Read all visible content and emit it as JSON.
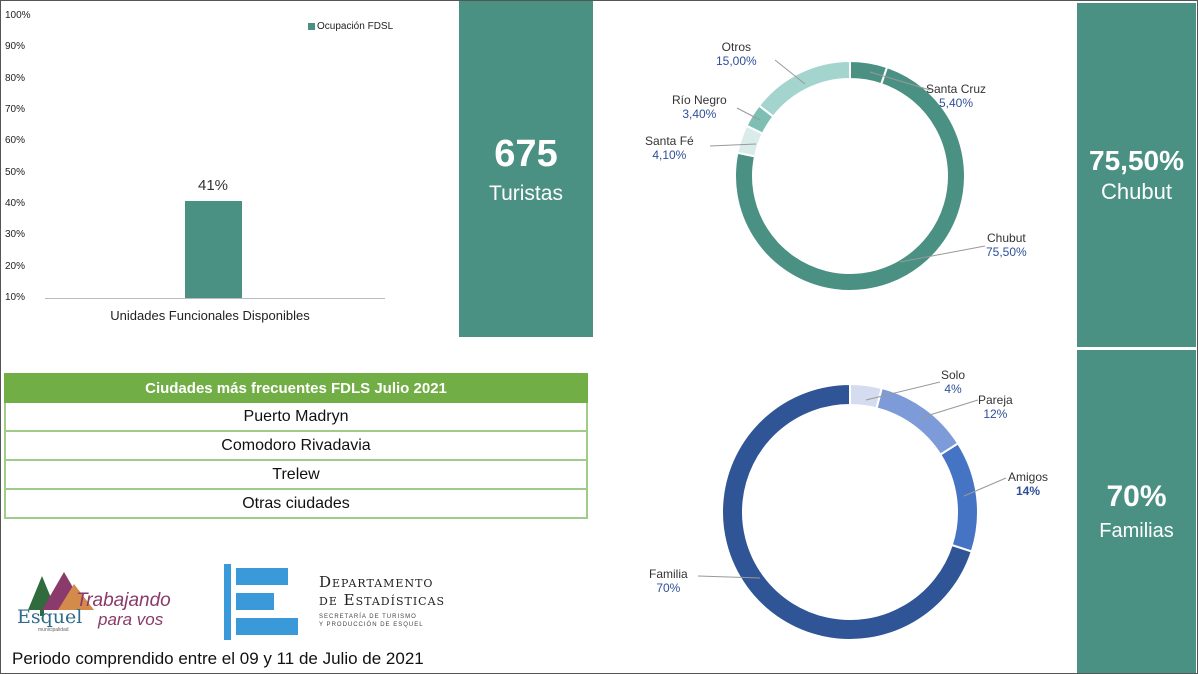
{
  "chart_data": [
    {
      "type": "bar",
      "categories": [
        "Unidades Funcionales Disponibles"
      ],
      "series": [
        {
          "name": "Ocupación FDSL",
          "values": [
            41
          ]
        }
      ],
      "data_labels": [
        "41%"
      ],
      "ylim": [
        10,
        100
      ],
      "yticks": [
        "100%",
        "90%",
        "80%",
        "70%",
        "60%",
        "50%",
        "40%",
        "30%",
        "20%",
        "10%"
      ],
      "legend": "top-right"
    },
    {
      "type": "pie",
      "donut": true,
      "slices": [
        {
          "name": "Santa Cruz",
          "value": 5.4,
          "label": "5,40%",
          "color": "#4a9184"
        },
        {
          "name": "Chubut",
          "value": 75.5,
          "label": "75,50%",
          "color": "#4a9184"
        },
        {
          "name": "Santa Fé",
          "value": 4.1,
          "label": "4,10%",
          "color": "#d9ecea"
        },
        {
          "name": "Río Negro",
          "value": 3.4,
          "label": "3,40%",
          "color": "#7ebfb4"
        },
        {
          "name": "Otros",
          "value": 15.0,
          "label": "15,00%",
          "color": "#a3d5ce"
        }
      ]
    },
    {
      "type": "pie",
      "donut": true,
      "slices": [
        {
          "name": "Solo",
          "value": 4,
          "label": "4%",
          "color": "#d5dcf0"
        },
        {
          "name": "Pareja",
          "value": 12,
          "label": "12%",
          "color": "#7d9bd8"
        },
        {
          "name": "Amigos",
          "value": 14,
          "label": "14%",
          "color": "#4674c4"
        },
        {
          "name": "Familia",
          "value": 70,
          "label": "70%",
          "color": "#2f5597"
        }
      ]
    }
  ],
  "stats": {
    "tourists": {
      "value": "675",
      "label": "Turistas"
    },
    "origin": {
      "value": "75,50%",
      "label": "Chubut"
    },
    "group": {
      "value": "70%",
      "label": "Familias"
    }
  },
  "cities_table": {
    "title": "Ciudades más frecuentes FDLS  Julio 2021",
    "rows": [
      "Puerto Madryn",
      "Comodoro Rivadavia",
      "Trelew",
      "Otras ciudades"
    ]
  },
  "logos": {
    "municipio": {
      "name": "Esquel",
      "slogan_1": "Trabajando",
      "slogan_2": "para vos",
      "small": "municipalidad"
    },
    "department": {
      "line1": "Departamento",
      "line2": "de Estadísticas",
      "sub1": "Secretaría de Turismo",
      "sub2": "y Producción de Esquel"
    }
  },
  "footer": "Periodo comprendido entre el 09 y 11 de Julio de 2021",
  "colors": {
    "teal": "#4a9184",
    "green": "#71ae45",
    "blue": "#2f5597"
  }
}
